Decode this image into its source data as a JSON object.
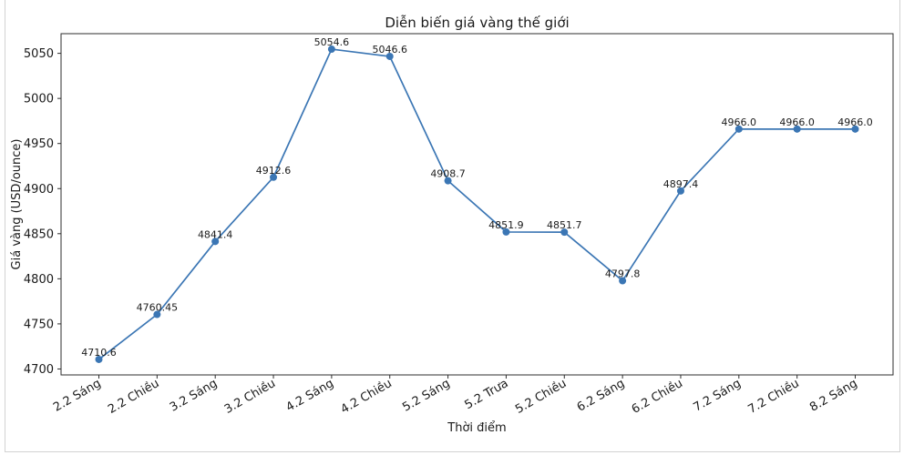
{
  "window": {
    "background": "#ffffff",
    "frame_border_color": "#d2d2d2"
  },
  "chart_data": {
    "type": "line",
    "title": "Diễn biến giá vàng thế giới",
    "xlabel": "Thời điểm",
    "ylabel": "Giá vàng (USD/ounce)",
    "categories": [
      "2.2 Sáng",
      "2.2 Chiều",
      "3.2 Sáng",
      "3.2 Chiều",
      "4.2 Sáng",
      "4.2 Chiều",
      "5.2 Sáng",
      "5.2 Trưa",
      "5.2 Chiều",
      "6.2 Sáng",
      "6.2 Chiều",
      "7.2 Sáng",
      "7.2 Chiều",
      "8.2 Sáng"
    ],
    "values": [
      4710.6,
      4760.45,
      4841.4,
      4912.6,
      5054.6,
      5046.6,
      4908.7,
      4851.9,
      4851.7,
      4797.8,
      4897.4,
      4966.0,
      4966.0,
      4966.0
    ],
    "point_labels": [
      "4710.6",
      "4760.45",
      "4841.4",
      "4912.6",
      "5054.6",
      "5046.6",
      "4908.7",
      "4851.9",
      "4851.7",
      "4797.8",
      "4897.4",
      "4966.0",
      "4966.0",
      "4966.0"
    ],
    "yticks": [
      4700,
      4750,
      4800,
      4850,
      4900,
      4950,
      5000,
      5050
    ],
    "ylim": [
      4693.4,
      5071.8
    ],
    "x_tick_rotation_deg": 30,
    "grid": false,
    "legend": "none",
    "line_color": "#3b76b4",
    "marker_color": "#3b76b4",
    "marker": "circle",
    "spine_color": "#2e2e2e",
    "text_color": "#1a1a1a"
  }
}
